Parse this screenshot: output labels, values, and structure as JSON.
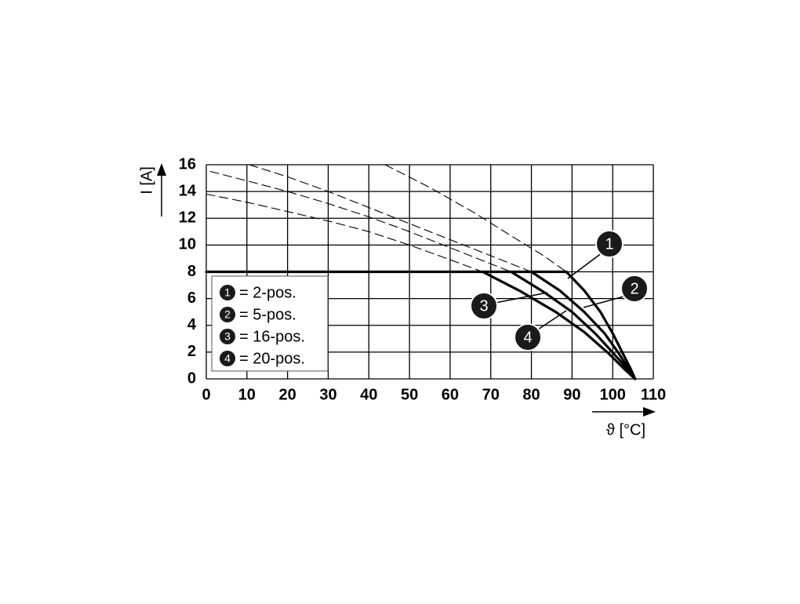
{
  "chart_data": {
    "type": "line",
    "xlabel": "ϑ [°C]",
    "ylabel": "I [A]",
    "xlim": [
      0,
      110
    ],
    "xticks": [
      0,
      10,
      20,
      30,
      40,
      50,
      60,
      70,
      80,
      90,
      100,
      110
    ],
    "ylim": [
      0,
      16
    ],
    "yticks": [
      0,
      2,
      4,
      6,
      8,
      10,
      12,
      14,
      16
    ],
    "grid": true,
    "color": "#000000",
    "legend": [
      {
        "marker": "1",
        "label": "= 2-pos."
      },
      {
        "marker": "2",
        "label": "= 5-pos."
      },
      {
        "marker": "3",
        "label": "= 16-pos."
      },
      {
        "marker": "4",
        "label": "= 20-pos."
      }
    ],
    "series": [
      {
        "style": "solid",
        "x": [
          0,
          88.6
        ],
        "values": [
          8,
          8
        ]
      },
      {
        "style": "solid",
        "x": [
          88.6,
          93,
          97,
          100,
          102.5,
          104.5,
          105.5
        ],
        "values": [
          8,
          6.6,
          5,
          3.4,
          1.9,
          0.7,
          0
        ]
      },
      {
        "style": "solid",
        "x": [
          80,
          87,
          93,
          98,
          101.5,
          104,
          105.5
        ],
        "values": [
          8,
          6.6,
          5,
          3.4,
          1.9,
          0.7,
          0
        ]
      },
      {
        "style": "solid",
        "x": [
          75,
          83,
          90,
          96,
          100.5,
          103.7,
          105.5
        ],
        "values": [
          8,
          6.5,
          5,
          3.3,
          1.8,
          0.7,
          0
        ]
      },
      {
        "style": "solid",
        "x": [
          68,
          77,
          86,
          93,
          99,
          103,
          105.5
        ],
        "values": [
          8,
          6.6,
          5,
          3.5,
          1.9,
          0.7,
          0
        ]
      },
      {
        "style": "dashed",
        "x": [
          44,
          55,
          66,
          76,
          83,
          88.6
        ],
        "values": [
          16,
          14.3,
          12.4,
          10.5,
          9.2,
          8
        ]
      },
      {
        "style": "dashed",
        "x": [
          10.6,
          20,
          30,
          40,
          50,
          60,
          70,
          80
        ],
        "values": [
          16,
          15.1,
          14,
          12.8,
          11.6,
          10.4,
          9.2,
          8
        ]
      },
      {
        "style": "dashed",
        "x": [
          1,
          10,
          20,
          30,
          40,
          50,
          60,
          70,
          75
        ],
        "values": [
          15.5,
          14.8,
          14,
          13.1,
          12.1,
          11,
          9.8,
          8.6,
          8
        ]
      },
      {
        "style": "dashed",
        "x": [
          0,
          10,
          20,
          30,
          40,
          50,
          60,
          68
        ],
        "values": [
          13.8,
          13.2,
          12.5,
          11.8,
          11,
          10,
          8.9,
          8
        ]
      }
    ]
  }
}
